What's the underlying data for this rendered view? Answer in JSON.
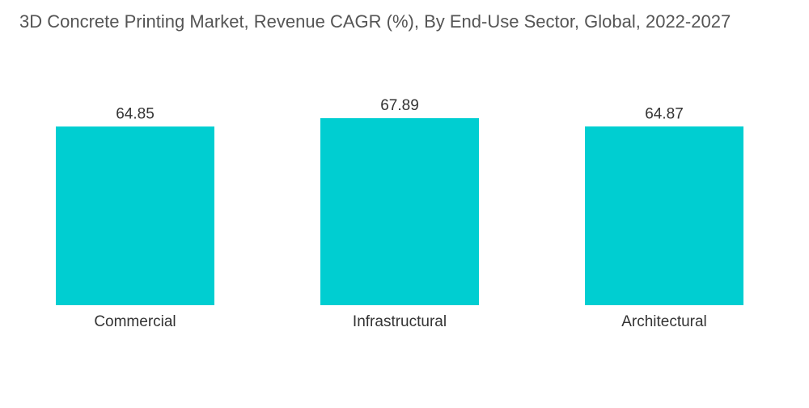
{
  "chart_data": {
    "type": "bar",
    "title": "3D Concrete Printing Market, Revenue CAGR (%), By End-Use Sector, Global, 2022-2027",
    "categories": [
      "Commercial",
      "Infrastructural",
      "Architectural"
    ],
    "values": [
      64.85,
      67.89,
      64.87
    ],
    "value_labels": [
      "64.85",
      "67.89",
      "64.87"
    ],
    "bar_color": "#00CED1",
    "xlabel": "",
    "ylabel": "",
    "ylim": [
      0,
      70
    ],
    "grid": false,
    "legend": "none"
  }
}
